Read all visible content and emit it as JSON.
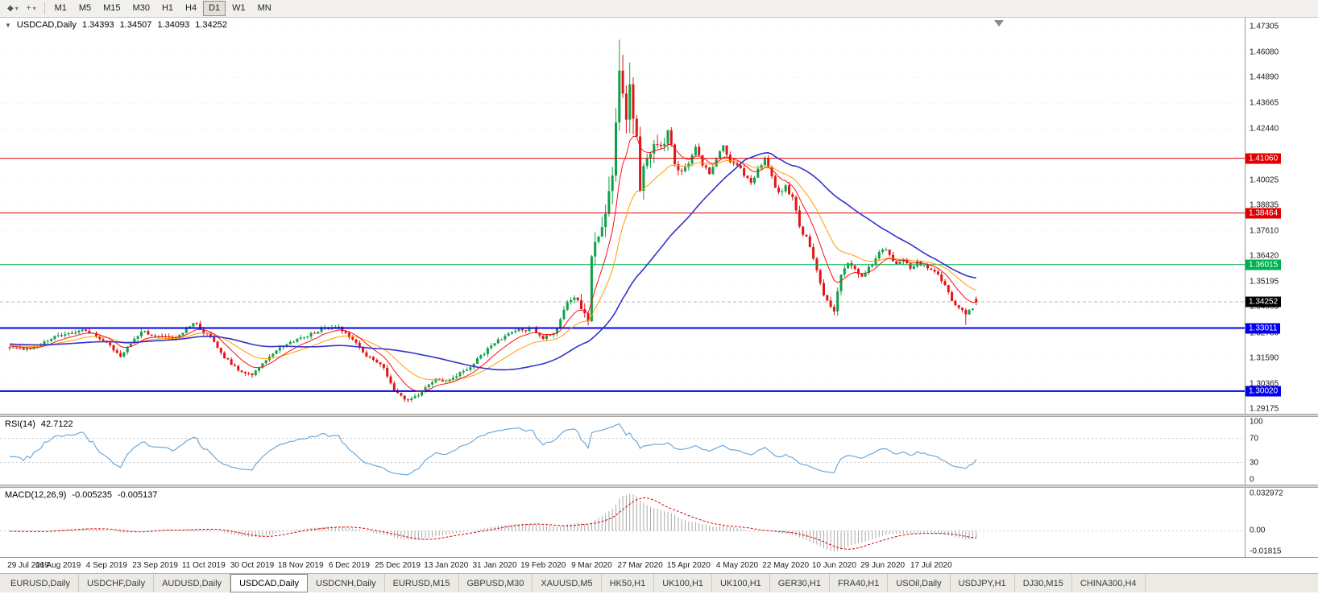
{
  "toolbar": {
    "timeframes": [
      {
        "label": "M1",
        "active": false
      },
      {
        "label": "M5",
        "active": false
      },
      {
        "label": "M15",
        "active": false
      },
      {
        "label": "M30",
        "active": false
      },
      {
        "label": "H1",
        "active": false
      },
      {
        "label": "H4",
        "active": false
      },
      {
        "label": "D1",
        "active": true
      },
      {
        "label": "W1",
        "active": false
      },
      {
        "label": "MN",
        "active": false
      }
    ]
  },
  "main_chart": {
    "symbol_title": "USDCAD,Daily",
    "open": "1.34393",
    "high": "1.34507",
    "low": "1.34093",
    "close": "1.34252"
  },
  "y_axis": {
    "max": 1.47305,
    "min": 1.29175,
    "ticks": [
      "1.47305",
      "1.46080",
      "1.44890",
      "1.43665",
      "1.42440",
      "1.40025",
      "1.38835",
      "1.37610",
      "1.36420",
      "1.35195",
      "1.34005",
      "1.32780",
      "1.31590",
      "1.30365",
      "1.29175"
    ]
  },
  "hlines": [
    {
      "price": 1.4106,
      "label": "1.41060",
      "color": "#e00000",
      "width": 1
    },
    {
      "price": 1.38464,
      "label": "1.38464",
      "color": "#e00000",
      "width": 1
    },
    {
      "price": 1.36015,
      "label": "1.36015",
      "color": "#00b050",
      "width": 1
    },
    {
      "price": 1.33011,
      "label": "1.33011",
      "color": "#0000f0",
      "width": 2
    },
    {
      "price": 1.3002,
      "label": "1.30020",
      "color": "#0000f0",
      "width": 2
    }
  ],
  "current_price": {
    "label": "1.34252",
    "price": 1.34252,
    "badge_color": "#000000"
  },
  "x_axis": [
    {
      "i": 0,
      "label": "29 Jul 2019"
    },
    {
      "i": 14,
      "label": "16 Aug 2019"
    },
    {
      "i": 28,
      "label": "4 Sep 2019"
    },
    {
      "i": 42,
      "label": "23 Sep 2019"
    },
    {
      "i": 56,
      "label": "11 Oct 2019"
    },
    {
      "i": 70,
      "label": "30 Oct 2019"
    },
    {
      "i": 84,
      "label": "18 Nov 2019"
    },
    {
      "i": 98,
      "label": "6 Dec 2019"
    },
    {
      "i": 112,
      "label": "25 Dec 2019"
    },
    {
      "i": 126,
      "label": "13 Jan 2020"
    },
    {
      "i": 140,
      "label": "31 Jan 2020"
    },
    {
      "i": 154,
      "label": "19 Feb 2020"
    },
    {
      "i": 168,
      "label": "9 Mar 2020"
    },
    {
      "i": 182,
      "label": "27 Mar 2020"
    },
    {
      "i": 196,
      "label": "15 Apr 2020"
    },
    {
      "i": 210,
      "label": "4 May 2020"
    },
    {
      "i": 224,
      "label": "22 May 2020"
    },
    {
      "i": 238,
      "label": "10 Jun 2020"
    },
    {
      "i": 252,
      "label": "29 Jun 2020"
    },
    {
      "i": 266,
      "label": "17 Jul 2020"
    }
  ],
  "rsi": {
    "name": "RSI(14)",
    "value": "42.7122",
    "levels": [
      100,
      70,
      30,
      0
    ]
  },
  "macd": {
    "name": "MACD(12,26,9)",
    "main": "-0.005235",
    "signal": "-0.005137",
    "axis_max": {
      "label": "0.032972",
      "value": 0.032972
    },
    "axis_zero": "0.00",
    "axis_min": {
      "label": "-0.01815",
      "value": -0.01815
    }
  },
  "tabs": [
    {
      "label": "EURUSD,Daily",
      "active": false
    },
    {
      "label": "USDCHF,Daily",
      "active": false
    },
    {
      "label": "AUDUSD,Daily",
      "active": false
    },
    {
      "label": "USDCAD,Daily",
      "active": true
    },
    {
      "label": "USDCNH,Daily",
      "active": false
    },
    {
      "label": "EURUSD,M15",
      "active": false
    },
    {
      "label": "GBPUSD,M30",
      "active": false
    },
    {
      "label": "XAUUSD,M5",
      "active": false
    },
    {
      "label": "HK50,H1",
      "active": false
    },
    {
      "label": "UK100,H1",
      "active": false
    },
    {
      "label": "UK100,H1",
      "active": false
    },
    {
      "label": "GER30,H1",
      "active": false
    },
    {
      "label": "FRA40,H1",
      "active": false
    },
    {
      "label": "USOil,Daily",
      "active": false
    },
    {
      "label": "USDJPY,H1",
      "active": false
    },
    {
      "label": "DJ30,M15",
      "active": false
    },
    {
      "label": "CHINA300,H4",
      "active": false
    }
  ],
  "colors": {
    "candle_up": "#0fa04a",
    "candle_down": "#e01616",
    "ma_fast": "#ff0f0f",
    "ma_mid": "#ff9c00",
    "ma_slow": "#3333cc",
    "rsi_line": "#6da9dc",
    "macd_hist": "#a8a8a8",
    "macd_signal": "#d40000",
    "grid": "#ebebeb"
  },
  "chart_data": {
    "type": "candlestick",
    "symbol": "USDCAD",
    "timeframe": "Daily",
    "title": "USDCAD,Daily 1.34393 1.34507 1.34093 1.34252",
    "x_range": [
      "29 Jul 2019",
      "17 Jul 2020"
    ],
    "y_range": [
      1.29175,
      1.47305
    ],
    "candle_count": 280,
    "last_candle": {
      "open": 1.34393,
      "high": 1.34507,
      "low": 1.34093,
      "close": 1.34252
    },
    "close_path_anchors": [
      [
        0,
        1.3215
      ],
      [
        6,
        1.32
      ],
      [
        14,
        1.3268
      ],
      [
        22,
        1.3292
      ],
      [
        28,
        1.3232
      ],
      [
        32,
        1.3172
      ],
      [
        38,
        1.3288
      ],
      [
        42,
        1.3262
      ],
      [
        48,
        1.3248
      ],
      [
        53,
        1.333
      ],
      [
        58,
        1.3255
      ],
      [
        62,
        1.316
      ],
      [
        66,
        1.3105
      ],
      [
        70,
        1.3078
      ],
      [
        74,
        1.3155
      ],
      [
        80,
        1.3228
      ],
      [
        84,
        1.3252
      ],
      [
        90,
        1.3298
      ],
      [
        95,
        1.3308
      ],
      [
        98,
        1.3262
      ],
      [
        103,
        1.317
      ],
      [
        108,
        1.3115
      ],
      [
        111,
        1.3005
      ],
      [
        114,
        1.2958
      ],
      [
        118,
        1.2988
      ],
      [
        123,
        1.3055
      ],
      [
        126,
        1.3048
      ],
      [
        132,
        1.3105
      ],
      [
        140,
        1.3232
      ],
      [
        146,
        1.3288
      ],
      [
        151,
        1.3298
      ],
      [
        154,
        1.3252
      ],
      [
        158,
        1.3292
      ],
      [
        161,
        1.3425
      ],
      [
        163,
        1.3455
      ],
      [
        165,
        1.3392
      ],
      [
        167,
        1.335
      ],
      [
        168,
        1.366
      ],
      [
        170,
        1.3745
      ],
      [
        172,
        1.3815
      ],
      [
        174,
        1.401
      ],
      [
        176,
        1.451
      ],
      [
        177,
        1.44
      ],
      [
        178,
        1.43
      ],
      [
        179,
        1.443
      ],
      [
        181,
        1.418
      ],
      [
        182,
        1.399
      ],
      [
        184,
        1.4095
      ],
      [
        186,
        1.4185
      ],
      [
        188,
        1.416
      ],
      [
        190,
        1.4225
      ],
      [
        192,
        1.4085
      ],
      [
        194,
        1.404
      ],
      [
        196,
        1.409
      ],
      [
        198,
        1.416
      ],
      [
        200,
        1.408
      ],
      [
        202,
        1.403
      ],
      [
        204,
        1.4105
      ],
      [
        206,
        1.417
      ],
      [
        208,
        1.4085
      ],
      [
        210,
        1.407
      ],
      [
        212,
        1.403
      ],
      [
        214,
        1.3985
      ],
      [
        216,
        1.405
      ],
      [
        218,
        1.411
      ],
      [
        220,
        1.401
      ],
      [
        222,
        1.3945
      ],
      [
        224,
        1.3975
      ],
      [
        226,
        1.391
      ],
      [
        228,
        1.3785
      ],
      [
        230,
        1.3725
      ],
      [
        232,
        1.3625
      ],
      [
        234,
        1.3505
      ],
      [
        236,
        1.3425
      ],
      [
        238,
        1.3392
      ],
      [
        240,
        1.356
      ],
      [
        242,
        1.3605
      ],
      [
        244,
        1.3572
      ],
      [
        246,
        1.3535
      ],
      [
        248,
        1.3585
      ],
      [
        250,
        1.3625
      ],
      [
        252,
        1.368
      ],
      [
        254,
        1.365
      ],
      [
        256,
        1.3602
      ],
      [
        258,
        1.3622
      ],
      [
        260,
        1.3585
      ],
      [
        262,
        1.3612
      ],
      [
        264,
        1.3598
      ],
      [
        266,
        1.358
      ],
      [
        268,
        1.3558
      ],
      [
        270,
        1.3502
      ],
      [
        272,
        1.3432
      ],
      [
        274,
        1.3392
      ],
      [
        276,
        1.3368
      ],
      [
        278,
        1.34
      ],
      [
        279,
        1.34252
      ]
    ],
    "forced_extremes": [
      {
        "i": 176,
        "high": 1.4668
      },
      {
        "i": 179,
        "high": 1.456
      },
      {
        "i": 114,
        "low": 1.2951
      },
      {
        "i": 276,
        "low": 1.3316
      }
    ],
    "horizontal_levels": [
      1.4106,
      1.38464,
      1.36015,
      1.33011,
      1.3002
    ],
    "indicators": [
      {
        "name": "RSI",
        "period": 14,
        "current": 42.7122
      },
      {
        "name": "MACD",
        "fast": 12,
        "slow": 26,
        "signal_period": 9,
        "current_main": -0.005235,
        "current_signal": -0.005137
      }
    ]
  }
}
